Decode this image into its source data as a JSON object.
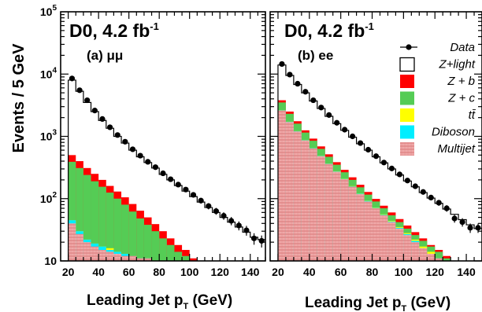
{
  "figure": {
    "ylabel": "Events / 5 GeV",
    "xlabel_left": "Leading Jet p",
    "xlabel_left_sub": "T",
    "xlabel_left_unit": " (GeV)",
    "xlabel_right": "Leading Jet p",
    "xlabel_right_sub": "T",
    "xlabel_right_unit": " (GeV)"
  },
  "colors": {
    "zlight": "#ffffff",
    "zb": "#ff0000",
    "zc": "#55cc55",
    "ttbar": "#ffff00",
    "diboson": "#00eeff",
    "multijet": "#f0a8a8",
    "multijet_hatch": "#cc5555",
    "data": "#000000"
  },
  "legend": [
    {
      "key": "data",
      "label": "Data"
    },
    {
      "key": "zlight",
      "label": "Z+light"
    },
    {
      "key": "zb",
      "label": "Z + b"
    },
    {
      "key": "zc",
      "label": "Z + c"
    },
    {
      "key": "ttbar",
      "label": "tt̄"
    },
    {
      "key": "diboson",
      "label": "Diboson"
    },
    {
      "key": "multijet",
      "label": "Multijet"
    }
  ],
  "chart_data": [
    {
      "type": "bar",
      "panel": "left",
      "title": "D0, 4.2 fb",
      "title_sup": "-1",
      "label": "(a) μμ",
      "xlabel": "Leading Jet pT (GeV)",
      "ylabel": "Events / 5 GeV",
      "log_y": true,
      "xlim": [
        15,
        150
      ],
      "ylim": [
        10,
        100000
      ],
      "xticks": [
        20,
        40,
        60,
        80,
        100,
        120,
        140
      ],
      "yticks": [
        10,
        100,
        1000,
        10000,
        100000
      ],
      "ytick_labels": [
        "10",
        "10²",
        "10³",
        "10⁴",
        "10⁵"
      ],
      "bin_edges": [
        20,
        25,
        30,
        35,
        40,
        45,
        50,
        55,
        60,
        65,
        70,
        75,
        80,
        85,
        90,
        95,
        100,
        105,
        110,
        115,
        120,
        125,
        130,
        135,
        140,
        145,
        150
      ],
      "series": [
        {
          "name": "Multijet",
          "values": [
            40,
            27,
            20,
            17,
            15,
            14,
            13,
            12,
            12,
            11,
            11,
            10,
            10,
            10,
            10,
            10,
            10,
            10,
            10,
            10,
            10,
            10,
            10,
            10,
            10,
            10
          ]
        },
        {
          "name": "Diboson",
          "values": [
            45,
            30,
            22,
            19,
            17,
            15,
            14,
            13,
            12,
            11,
            11,
            10,
            10,
            10,
            10,
            10,
            10,
            10,
            10,
            10,
            10,
            10,
            10,
            10,
            10,
            10
          ]
        },
        {
          "name": "tt̄",
          "values": [
            45,
            30,
            22,
            19,
            17,
            16,
            14,
            13,
            12,
            11,
            11,
            10,
            10,
            10,
            10,
            10,
            10,
            10,
            10,
            10,
            10,
            10,
            10,
            10,
            10,
            10
          ]
        },
        {
          "name": "Z + c",
          "values": [
            390,
            310,
            240,
            190,
            155,
            125,
            100,
            80,
            62,
            48,
            38,
            30,
            23,
            18,
            14,
            12,
            10,
            10,
            10,
            10,
            10,
            10,
            10,
            10,
            10,
            10
          ]
        },
        {
          "name": "Z + b",
          "values": [
            500,
            400,
            310,
            250,
            200,
            160,
            130,
            105,
            82,
            64,
            50,
            39,
            30,
            23,
            18,
            15,
            11,
            10,
            10,
            10,
            10,
            10,
            10,
            10,
            10,
            10
          ]
        },
        {
          "name": "Z+light",
          "values": [
            8000,
            5300,
            3500,
            2500,
            1800,
            1350,
            1000,
            780,
            600,
            470,
            380,
            310,
            245,
            200,
            162,
            132,
            108,
            88,
            72,
            60,
            50,
            42,
            35,
            29,
            24,
            22
          ]
        }
      ],
      "data_points": {
        "name": "Data",
        "x": [
          22.5,
          27.5,
          32.5,
          37.5,
          42.5,
          47.5,
          52.5,
          57.5,
          62.5,
          67.5,
          72.5,
          77.5,
          82.5,
          87.5,
          92.5,
          97.5,
          102.5,
          107.5,
          112.5,
          117.5,
          122.5,
          127.5,
          132.5,
          137.5,
          142.5,
          147.5
        ],
        "y": [
          8500,
          5500,
          3800,
          2600,
          1900,
          1400,
          1050,
          820,
          620,
          490,
          390,
          320,
          255,
          205,
          168,
          140,
          115,
          93,
          76,
          63,
          53,
          44,
          37,
          31,
          23,
          21
        ]
      }
    },
    {
      "type": "bar",
      "panel": "right",
      "title": "D0, 4.2 fb",
      "title_sup": "-1",
      "label": "(b) ee",
      "xlabel": "Leading Jet pT (GeV)",
      "ylabel": "Events / 5 GeV",
      "log_y": true,
      "xlim": [
        15,
        150
      ],
      "ylim": [
        10,
        100000
      ],
      "xticks": [
        20,
        40,
        60,
        80,
        100,
        120,
        140
      ],
      "bin_edges": [
        20,
        25,
        30,
        35,
        40,
        45,
        50,
        55,
        60,
        65,
        70,
        75,
        80,
        85,
        90,
        95,
        100,
        105,
        110,
        115,
        120,
        125,
        130,
        135,
        140,
        145,
        150
      ],
      "series": [
        {
          "name": "Multijet",
          "values": [
            2600,
            1700,
            1200,
            860,
            640,
            480,
            360,
            270,
            205,
            155,
            118,
            90,
            70,
            54,
            42,
            33,
            26,
            20,
            16,
            13,
            11,
            10,
            10,
            10,
            10,
            10
          ]
        },
        {
          "name": "Diboson",
          "values": [
            2620,
            1715,
            1210,
            868,
            646,
            485,
            364,
            273,
            207,
            157,
            120,
            92,
            71,
            55,
            43,
            34,
            27,
            21,
            16,
            13,
            11,
            10,
            10,
            10,
            10,
            10
          ]
        },
        {
          "name": "tt̄",
          "values": [
            2625,
            1718,
            1213,
            870,
            648,
            487,
            366,
            275,
            209,
            159,
            121,
            93,
            72,
            56,
            44,
            35,
            28,
            22,
            17,
            14,
            11,
            10,
            10,
            10,
            10,
            10
          ]
        },
        {
          "name": "Z + c",
          "values": [
            3500,
            2300,
            1600,
            1150,
            850,
            630,
            470,
            350,
            265,
            200,
            152,
            116,
            90,
            70,
            54,
            42,
            33,
            26,
            21,
            17,
            14,
            11,
            10,
            10,
            10,
            10
          ]
        },
        {
          "name": "Z + b",
          "values": [
            3800,
            2500,
            1750,
            1250,
            920,
            690,
            515,
            385,
            290,
            220,
            167,
            128,
            99,
            77,
            60,
            47,
            37,
            29,
            23,
            18,
            15,
            12,
            10,
            10,
            10,
            10
          ]
        },
        {
          "name": "Z+light",
          "values": [
            14000,
            9500,
            6800,
            5000,
            3700,
            2800,
            2100,
            1600,
            1250,
            970,
            760,
            600,
            470,
            375,
            300,
            240,
            192,
            155,
            125,
            102,
            84,
            68,
            56,
            46,
            38,
            33
          ]
        }
      ],
      "data_points": {
        "name": "Data",
        "x": [
          22.5,
          27.5,
          32.5,
          37.5,
          42.5,
          47.5,
          52.5,
          57.5,
          62.5,
          67.5,
          72.5,
          77.5,
          82.5,
          87.5,
          92.5,
          97.5,
          102.5,
          107.5,
          112.5,
          117.5,
          122.5,
          127.5,
          132.5,
          137.5,
          142.5,
          147.5
        ],
        "y": [
          14500,
          9800,
          7000,
          5200,
          3800,
          2900,
          2200,
          1650,
          1280,
          1000,
          780,
          610,
          480,
          380,
          305,
          245,
          195,
          158,
          128,
          104,
          86,
          70,
          48,
          42,
          34,
          34
        ]
      }
    }
  ]
}
